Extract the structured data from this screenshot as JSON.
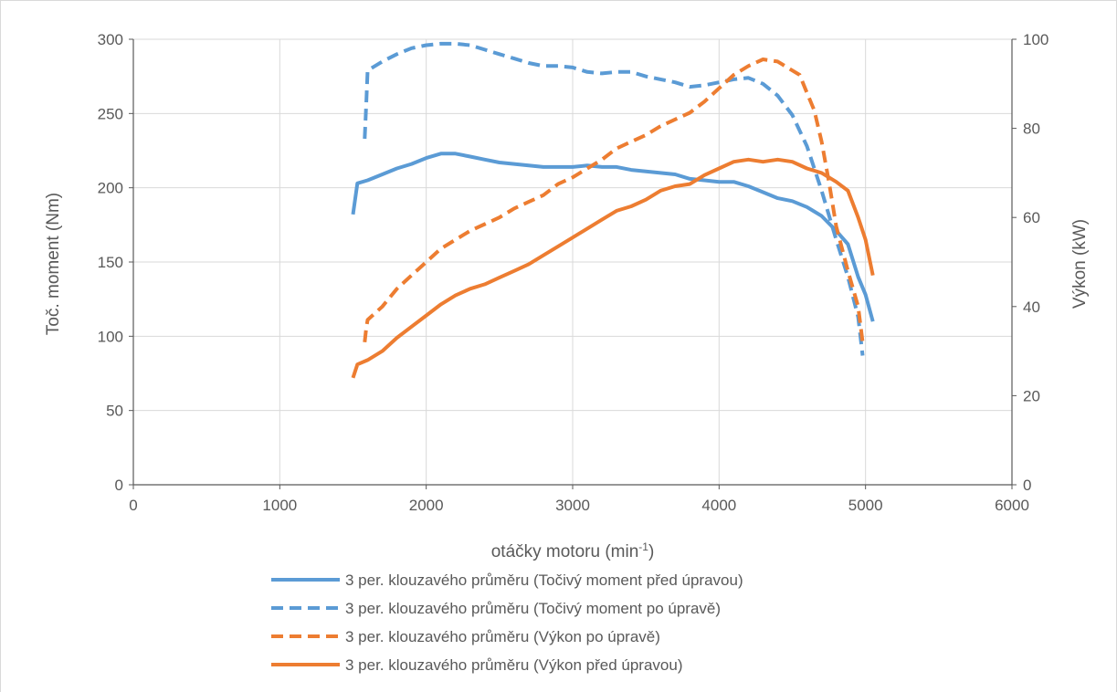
{
  "chart_data": {
    "type": "line",
    "title": "",
    "xlabel": {
      "main": "otáčky motoru (min",
      "sup": "-1",
      "tail": ")"
    },
    "ylabel_left": "Toč. moment (Nm)",
    "ylabel_right": "Výkon (kW)",
    "xlim": [
      0,
      6000
    ],
    "ylim_left": [
      0,
      300
    ],
    "ylim_right": [
      0,
      100
    ],
    "x_ticks": [
      0,
      1000,
      2000,
      3000,
      4000,
      5000,
      6000
    ],
    "y_left_ticks": [
      0,
      50,
      100,
      150,
      200,
      250,
      300
    ],
    "y_right_ticks": [
      0,
      20,
      40,
      60,
      80,
      100
    ],
    "grid": true,
    "legend_position": "bottom",
    "colors": {
      "blue": "#5b9bd5",
      "orange": "#ed7d31",
      "grid": "#d9d9d9",
      "axis": "#595959"
    },
    "series": [
      {
        "name": "3 per. klouzavého průměru (Točivý moment před úpravou)",
        "axis": "left",
        "color": "#5b9bd5",
        "dash": "solid",
        "x": [
          1500,
          1530,
          1600,
          1700,
          1800,
          1900,
          2000,
          2100,
          2200,
          2300,
          2400,
          2500,
          2600,
          2700,
          2800,
          2900,
          3000,
          3100,
          3200,
          3300,
          3400,
          3500,
          3600,
          3700,
          3800,
          3900,
          4000,
          4100,
          4200,
          4300,
          4400,
          4500,
          4600,
          4700,
          4800,
          4880,
          4950,
          5000,
          5050
        ],
        "y": [
          182,
          203,
          205,
          209,
          213,
          216,
          220,
          223,
          223,
          221,
          219,
          217,
          216,
          215,
          214,
          214,
          214,
          215,
          214,
          214,
          212,
          211,
          210,
          209,
          206,
          205,
          204,
          204,
          201,
          197,
          193,
          191,
          187,
          181,
          171,
          162,
          140,
          128,
          110
        ]
      },
      {
        "name": "3 per. klouzavého průměru (Točivý moment po úpravě)",
        "axis": "left",
        "color": "#5b9bd5",
        "dash": "dashed",
        "x": [
          1580,
          1590,
          1600,
          1700,
          1800,
          1900,
          2000,
          2100,
          2200,
          2300,
          2400,
          2500,
          2600,
          2700,
          2800,
          2900,
          3000,
          3100,
          3200,
          3300,
          3400,
          3500,
          3600,
          3700,
          3800,
          3900,
          4000,
          4100,
          4200,
          4300,
          4400,
          4500,
          4600,
          4700,
          4800,
          4880,
          4950,
          4980
        ],
        "y": [
          233,
          255,
          279,
          285,
          290,
          294,
          296,
          297,
          297,
          296,
          293,
          290,
          287,
          284,
          282,
          282,
          281,
          278,
          277,
          278,
          278,
          275,
          273,
          271,
          268,
          269,
          271,
          273,
          274,
          270,
          262,
          249,
          228,
          198,
          165,
          140,
          113,
          87
        ]
      },
      {
        "name": "3 per. klouzavého průměru (Výkon po úpravě)",
        "axis": "right",
        "color": "#ed7d31",
        "dash": "dashed",
        "x": [
          1580,
          1590,
          1600,
          1700,
          1800,
          1900,
          2000,
          2100,
          2200,
          2300,
          2400,
          2500,
          2600,
          2700,
          2800,
          2900,
          3000,
          3100,
          3200,
          3300,
          3400,
          3500,
          3600,
          3700,
          3800,
          3900,
          4000,
          4100,
          4200,
          4300,
          4400,
          4500,
          4550,
          4600,
          4650,
          4700,
          4750,
          4800,
          4880,
          4950,
          4980
        ],
        "y": [
          32,
          35,
          37,
          40,
          44,
          47,
          50,
          53,
          55,
          57,
          58.5,
          60,
          62,
          63.5,
          65,
          67.5,
          69,
          71,
          73,
          75.5,
          77,
          78.5,
          80.5,
          82,
          83.5,
          86,
          89,
          92,
          94,
          95.5,
          95,
          93,
          92,
          88,
          84,
          77,
          68,
          58,
          48,
          40,
          32
        ]
      },
      {
        "name": "3 per. klouzavého průměru (Výkon před úpravou)",
        "axis": "right",
        "color": "#ed7d31",
        "dash": "solid",
        "x": [
          1500,
          1530,
          1600,
          1700,
          1800,
          1900,
          2000,
          2100,
          2200,
          2300,
          2400,
          2500,
          2600,
          2700,
          2800,
          2900,
          3000,
          3100,
          3200,
          3300,
          3400,
          3500,
          3600,
          3700,
          3800,
          3900,
          4000,
          4100,
          4200,
          4300,
          4400,
          4500,
          4600,
          4700,
          4800,
          4880,
          4950,
          5000,
          5050
        ],
        "y": [
          24,
          27,
          28,
          30,
          33,
          35.5,
          38,
          40.5,
          42.5,
          44,
          45,
          46.5,
          48,
          49.5,
          51.5,
          53.5,
          55.5,
          57.5,
          59.5,
          61.5,
          62.5,
          64,
          66,
          67,
          67.5,
          69.5,
          71,
          72.5,
          73,
          72.5,
          73,
          72.5,
          71,
          70,
          68,
          66,
          60,
          55,
          47
        ]
      }
    ]
  }
}
